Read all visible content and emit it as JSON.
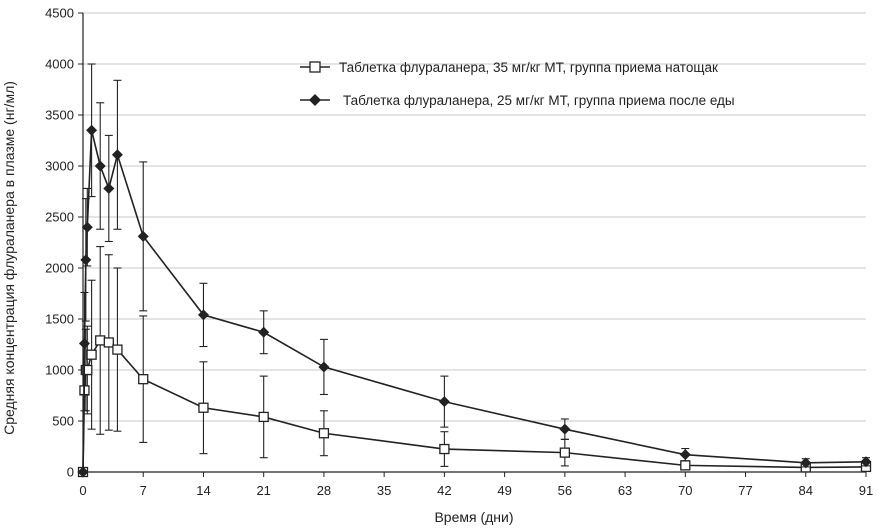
{
  "chart_data": {
    "type": "line",
    "xlabel": "Время (дни)",
    "ylabel": "Средняя концентрация флураланера в плазме (нг/мл)",
    "xlim": [
      0,
      91
    ],
    "ylim": [
      0,
      4500
    ],
    "x_ticks": [
      0,
      7,
      14,
      21,
      28,
      35,
      42,
      49,
      56,
      63,
      70,
      77,
      84,
      91
    ],
    "y_ticks": [
      0,
      500,
      1000,
      1500,
      2000,
      2500,
      3000,
      3500,
      4000,
      4500
    ],
    "grid": "horizontal",
    "legend_position": "top-right",
    "series": [
      {
        "name": "Таблетка флураланера, 35 мг/кг МТ, группа приема натощак",
        "marker": "open-square",
        "color": "#222222",
        "points": [
          {
            "x": 0,
            "y": 0,
            "err": 0
          },
          {
            "x": 0.17,
            "y": 800,
            "err": 200
          },
          {
            "x": 0.33,
            "y": 1000,
            "err": 400
          },
          {
            "x": 0.5,
            "y": 1000,
            "err": 430
          },
          {
            "x": 1,
            "y": 1150,
            "err": 730
          },
          {
            "x": 2,
            "y": 1290,
            "err": 920
          },
          {
            "x": 3,
            "y": 1270,
            "err": 860
          },
          {
            "x": 4,
            "y": 1200,
            "err": 800
          },
          {
            "x": 7,
            "y": 910,
            "err": 620
          },
          {
            "x": 14,
            "y": 630,
            "err": 450
          },
          {
            "x": 21,
            "y": 540,
            "err": 400
          },
          {
            "x": 28,
            "y": 380,
            "err": 220
          },
          {
            "x": 42,
            "y": 225,
            "err": 170
          },
          {
            "x": 56,
            "y": 190,
            "err": 130
          },
          {
            "x": 70,
            "y": 65,
            "err": 40
          },
          {
            "x": 84,
            "y": 45,
            "err": 30
          },
          {
            "x": 91,
            "y": 50,
            "err": 30
          }
        ]
      },
      {
        "name": "Таблетка флураланера, 25 мг/кг МТ, группа приема после еды",
        "marker": "filled-diamond",
        "color": "#222222",
        "points": [
          {
            "x": 0,
            "y": 0,
            "err": 0
          },
          {
            "x": 0.17,
            "y": 1260,
            "err": 500
          },
          {
            "x": 0.33,
            "y": 2080,
            "err": 600
          },
          {
            "x": 0.5,
            "y": 2400,
            "err": 380
          },
          {
            "x": 1,
            "y": 3350,
            "err": 650
          },
          {
            "x": 2,
            "y": 3000,
            "err": 620
          },
          {
            "x": 3,
            "y": 2780,
            "err": 520
          },
          {
            "x": 4,
            "y": 3110,
            "err": 730
          },
          {
            "x": 7,
            "y": 2310,
            "err": 730
          },
          {
            "x": 14,
            "y": 1540,
            "err": 310
          },
          {
            "x": 21,
            "y": 1370,
            "err": 210
          },
          {
            "x": 28,
            "y": 1030,
            "err": 270
          },
          {
            "x": 42,
            "y": 690,
            "err": 250
          },
          {
            "x": 56,
            "y": 420,
            "err": 100
          },
          {
            "x": 70,
            "y": 170,
            "err": 60
          },
          {
            "x": 84,
            "y": 90,
            "err": 40
          },
          {
            "x": 91,
            "y": 100,
            "err": 40
          }
        ]
      }
    ]
  }
}
